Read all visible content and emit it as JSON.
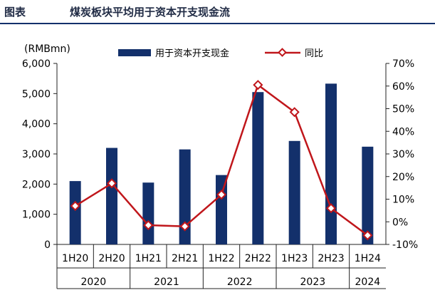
{
  "header": {
    "label": "图表",
    "title": "煤炭板块平均用于资本开支现金流"
  },
  "chart_data": {
    "type": "bar",
    "title": "",
    "ylabel_left": "(RMBmn)",
    "xlabel": "",
    "categories": [
      "1H20",
      "2H20",
      "1H21",
      "2H21",
      "1H22",
      "2H22",
      "1H23",
      "2H23",
      "1H24"
    ],
    "groups": [
      {
        "label": "2020",
        "span": 2
      },
      {
        "label": "2021",
        "span": 2
      },
      {
        "label": "2022",
        "span": 2
      },
      {
        "label": "2023",
        "span": 2
      },
      {
        "label": "2024",
        "span": 1
      }
    ],
    "left_axis": {
      "min": 0,
      "max": 6000,
      "ticks": [
        0,
        1000,
        2000,
        3000,
        4000,
        5000,
        6000
      ],
      "tick_labels": [
        "0",
        "1,000",
        "2,000",
        "3,000",
        "4,000",
        "5,000",
        "6,000"
      ]
    },
    "right_axis": {
      "min": -10,
      "max": 70,
      "ticks": [
        -10,
        0,
        10,
        20,
        30,
        40,
        50,
        60,
        70
      ],
      "tick_labels": [
        "-10%",
        "0%",
        "10%",
        "20%",
        "30%",
        "40%",
        "50%",
        "60%",
        "70%"
      ]
    },
    "series": [
      {
        "name": "用于资本开支现金",
        "type": "bar",
        "axis": "left",
        "color": "#13306b",
        "values": [
          2100,
          3200,
          2050,
          3150,
          2300,
          5050,
          3430,
          5330,
          3240
        ]
      },
      {
        "name": "同比",
        "type": "line",
        "axis": "right",
        "color": "#c0161b",
        "values": [
          7,
          17,
          -1.5,
          -2,
          12,
          60.5,
          48.5,
          6,
          -6
        ]
      }
    ],
    "legend_position": "top",
    "grid": false
  }
}
